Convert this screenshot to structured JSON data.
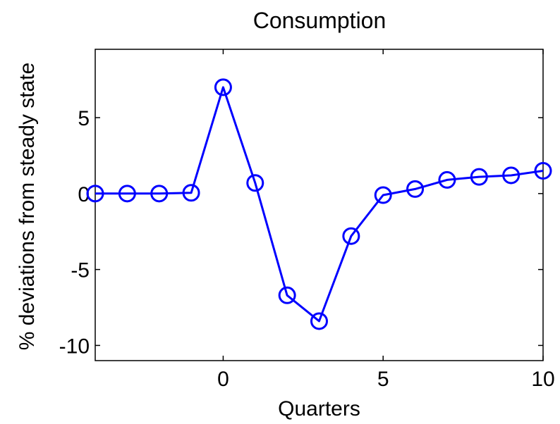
{
  "chart_data": {
    "type": "line",
    "title": "Consumption",
    "xlabel": "Quarters",
    "ylabel": "% deviations from steady state",
    "xlim": [
      -4,
      10
    ],
    "ylim": [
      -11,
      9.5
    ],
    "xticks": [
      0,
      5,
      10
    ],
    "yticks": [
      -10,
      -5,
      0,
      5
    ],
    "grid": false,
    "legend": "none",
    "series": [
      {
        "color": "#0000ff",
        "marker": "circle",
        "x": [
          -4,
          -3,
          -2,
          -1,
          0,
          1,
          2,
          3,
          4,
          5,
          6,
          7,
          8,
          9,
          10
        ],
        "y": [
          0,
          0,
          0,
          0.05,
          7.0,
          0.7,
          -6.7,
          -8.4,
          -2.8,
          -0.1,
          0.3,
          0.9,
          1.1,
          1.2,
          1.5
        ]
      }
    ]
  }
}
